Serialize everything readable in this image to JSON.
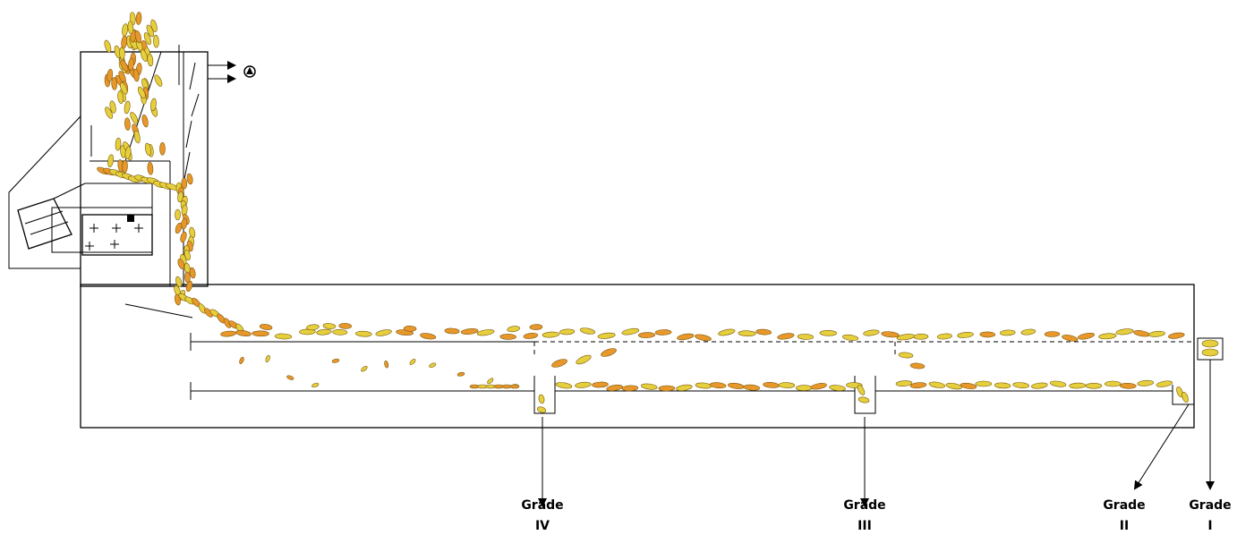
{
  "outputs": [
    {
      "grade_label": "Grade",
      "grade_number": "IV"
    },
    {
      "grade_label": "Grade",
      "grade_number": "III"
    },
    {
      "grade_label": "Grade",
      "grade_number": "II"
    },
    {
      "grade_label": "Grade",
      "grade_number": "I"
    }
  ],
  "colors": {
    "grain_yellow": "#e6cf3c",
    "grain_orange": "#e8972a",
    "grain_outline": "#7a5a10",
    "line": "#000000"
  },
  "icons": [
    "fan-icon"
  ]
}
